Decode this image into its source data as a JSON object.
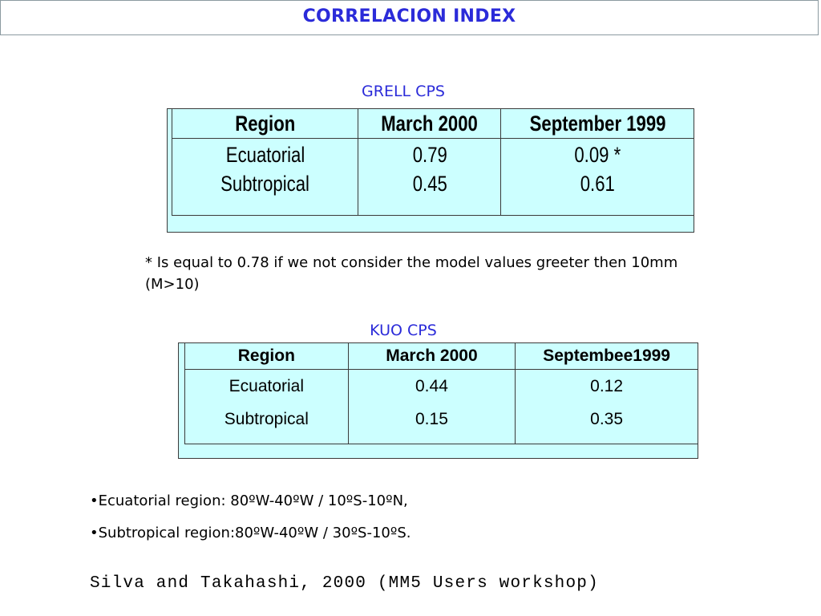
{
  "title": "CORRELACION INDEX",
  "grell": {
    "caption": "GRELL CPS",
    "headers": [
      "Region",
      "March 2000",
      "September 1999"
    ],
    "rows": [
      [
        "Ecuatorial",
        "0.79",
        "0.09 *"
      ],
      [
        "Subtropical",
        "0.45",
        "0.61"
      ]
    ]
  },
  "note": "* Is equal to 0.78 if we not consider the model values greeter then 10mm (M>10)",
  "kuo": {
    "caption": "KUO CPS",
    "headers": [
      "Region",
      "March 2000",
      "Septembee1999"
    ],
    "rows": [
      [
        "Ecuatorial",
        "0.44",
        "0.12"
      ],
      [
        "Subtropical",
        "0.15",
        "0.35"
      ]
    ]
  },
  "bullets": [
    "•Ecuatorial region: 80ºW-40ºW / 10ºS-10ºN,",
    "•Subtropical region:80ºW-40ºW / 30ºS-10ºS."
  ],
  "citation": "Silva and Takahashi, 2000 (MM5 Users workshop)",
  "colors": {
    "title": "#2b2bd9",
    "table_fill": "#ccffff"
  }
}
